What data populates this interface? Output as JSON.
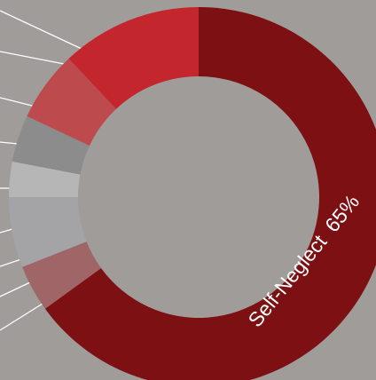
{
  "chart_data": {
    "type": "donut",
    "categories": [
      "Self-Neglect",
      null,
      null,
      null,
      null,
      null,
      null
    ],
    "values": [
      65,
      4,
      6,
      3,
      4,
      6,
      12
    ],
    "value_labels": [
      "65%",
      null,
      null,
      null,
      null,
      null,
      null
    ],
    "colors": [
      "#7c1013",
      "#a06567",
      "#a4a4a7",
      "#b6b6b6",
      "#8d8c8c",
      "#bd4b4d",
      "#c4262d"
    ]
  }
}
